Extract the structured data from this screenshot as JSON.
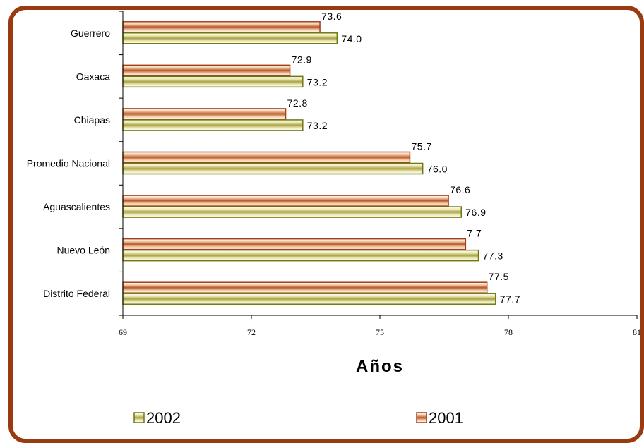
{
  "chart_data": {
    "type": "bar",
    "orientation": "horizontal",
    "categories": [
      "Guerrero",
      "Oaxaca",
      "Chiapas",
      "Promedio Nacional",
      "Aguascalientes",
      "Nuevo León",
      "Distrito Federal"
    ],
    "series": [
      {
        "name": "2001",
        "values": [
          73.6,
          72.9,
          72.8,
          75.7,
          76.6,
          77.0,
          77.5
        ],
        "labels": [
          "73.6",
          "72.9",
          "72.8",
          "75.7",
          "76.6",
          "7 7",
          "77.5"
        ],
        "color": "#a0401a"
      },
      {
        "name": "2002",
        "values": [
          74.0,
          73.2,
          73.2,
          76.0,
          76.9,
          77.3,
          77.7
        ],
        "labels": [
          "74.0",
          "73.2",
          "73.2",
          "76.0",
          "76.9",
          "77.3",
          "77.7"
        ],
        "color": "#6b7a10"
      }
    ],
    "xlim": [
      69,
      81
    ],
    "xticks": [
      69,
      72,
      75,
      78,
      81
    ],
    "xtick_labels": [
      "69",
      "72",
      "75",
      "78",
      "81"
    ],
    "xlabel": "Años",
    "legend_position": "bottom"
  }
}
